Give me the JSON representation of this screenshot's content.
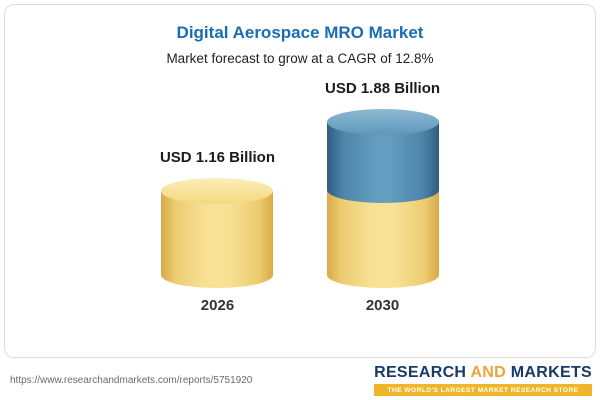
{
  "header": {
    "title": "Digital Aerospace MRO Market",
    "subtitle": "Market forecast to grow at a CAGR of 12.8%"
  },
  "chart_data": {
    "type": "bar",
    "variant": "3d-cylinder",
    "title": "Digital Aerospace MRO Market",
    "subtitle": "Market forecast to grow at a CAGR of 12.8%",
    "categories": [
      "2026",
      "2030"
    ],
    "values": [
      1.16,
      1.88
    ],
    "value_labels": [
      "USD 1.16 Billion",
      "USD 1.88 Billion"
    ],
    "unit": "USD Billion",
    "cagr_percent": 12.8,
    "ylim": [
      0,
      2
    ],
    "grid": false,
    "legend": false,
    "series": [
      {
        "name": "base",
        "color": "#f2d278",
        "values": [
          1.16,
          1.16
        ]
      },
      {
        "name": "growth",
        "color": "#5b92b5",
        "values": [
          0,
          0.72
        ]
      }
    ],
    "colors": {
      "title": "#1a6db3",
      "bar_yellow": "#f2d278",
      "bar_blue": "#5b92b5"
    }
  },
  "footer": {
    "url": "https://www.researchandmarkets.com/reports/5751920",
    "logo": {
      "word1": "RESEARCH",
      "word2": "AND",
      "word3": "MARKETS",
      "tagline": "THE WORLD'S LARGEST MARKET RESEARCH STORE"
    }
  }
}
